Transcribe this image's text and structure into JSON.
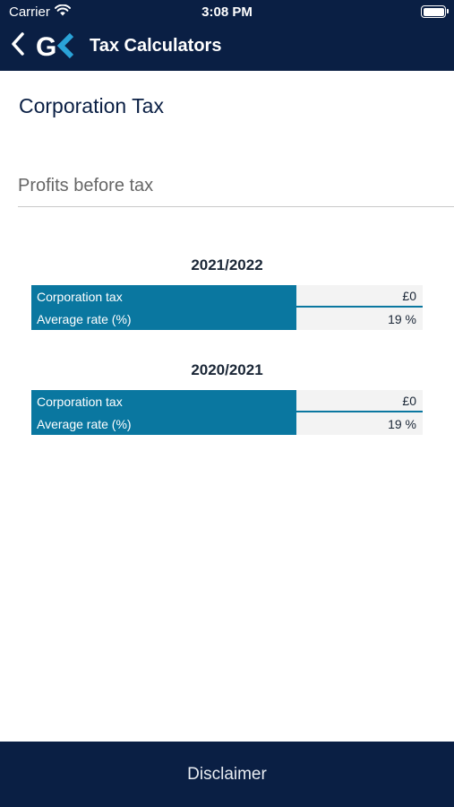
{
  "status_bar": {
    "carrier": "Carrier",
    "time": "3:08 PM"
  },
  "nav": {
    "title": "Tax Calculators",
    "logo_text": "GK"
  },
  "page": {
    "title": "Corporation Tax"
  },
  "input": {
    "placeholder": "Profits before tax",
    "value": ""
  },
  "years": [
    {
      "label": "2021/2022",
      "rows": [
        {
          "label": "Corporation tax",
          "value": "£0"
        },
        {
          "label": "Average rate (%)",
          "value": "19 %"
        }
      ]
    },
    {
      "label": "2020/2021",
      "rows": [
        {
          "label": "Corporation tax",
          "value": "£0"
        },
        {
          "label": "Average rate (%)",
          "value": "19 %"
        }
      ]
    }
  ],
  "footer": {
    "disclaimer_label": "Disclaimer"
  },
  "colors": {
    "navy": "#0a1f44",
    "teal": "#0a77a0",
    "logo_accent": "#2aa3d8"
  },
  "icons": {
    "back": "chevron-left-icon",
    "wifi": "wifi-icon",
    "battery": "battery-icon"
  }
}
